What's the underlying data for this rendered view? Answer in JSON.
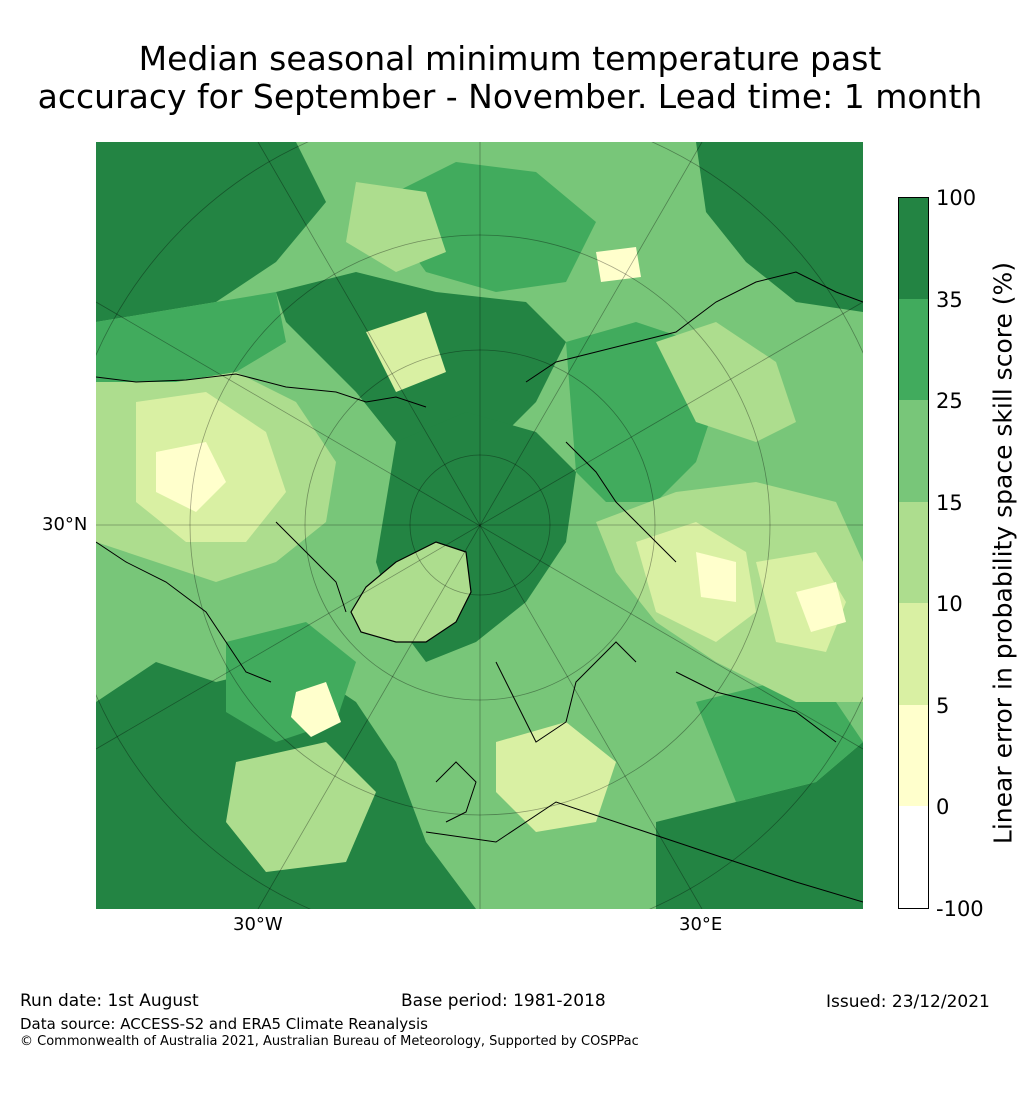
{
  "title": {
    "line1": "Median seasonal minimum temperature past",
    "line2": "accuracy for September - November. Lead time: 1 month"
  },
  "map": {
    "projection": "north-polar-stereographic",
    "lat_label": "30°N",
    "lon_labels": [
      "30°W",
      "30°E"
    ]
  },
  "colorbar": {
    "title": "Linear error in probability space skill score (%)",
    "ticks": [
      "100",
      "35",
      "25",
      "15",
      "10",
      "5",
      "0",
      "-100"
    ],
    "colors": [
      "#238443",
      "#41ab5d",
      "#78c679",
      "#addd8e",
      "#d9f0a3",
      "#ffffcc",
      "#ffffff"
    ],
    "ranges": [
      "35 to 100",
      "25 to 35",
      "15 to 25",
      "10 to 15",
      "5 to 10",
      "0 to 5",
      "-100 to 0"
    ]
  },
  "footer": {
    "run_date": "Run date: 1st August",
    "base_period": "Base period: 1981-2018",
    "issued": "Issued: 23/12/2021",
    "data_source": "Data source: ACCESS-S2 and ERA5 Climate Reanalysis",
    "copyright": "© Commonwealth of Australia 2021, Australian Bureau of Meteorology, Supported by COSPPac"
  }
}
